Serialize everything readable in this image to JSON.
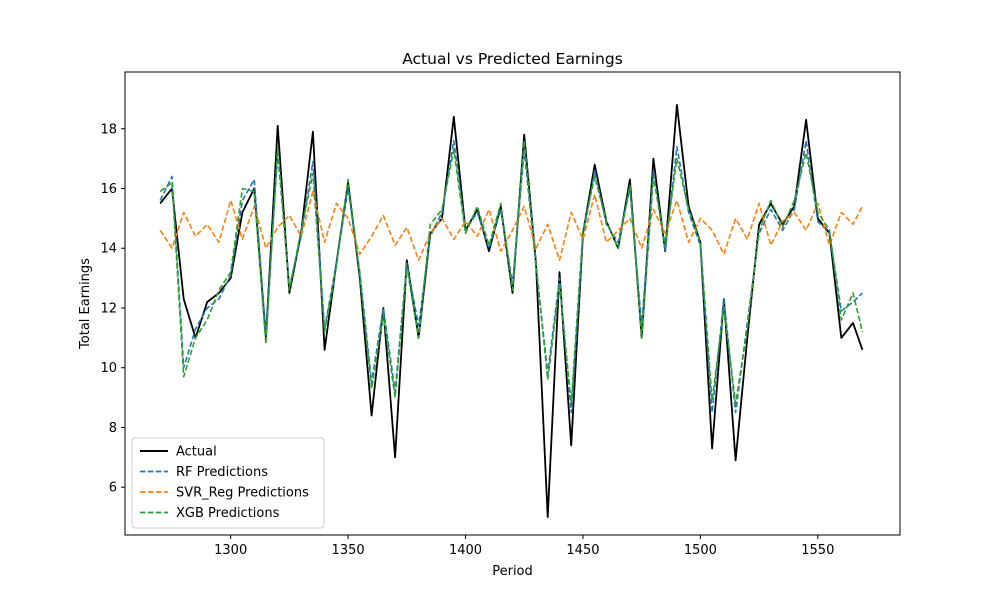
{
  "chart_data": {
    "type": "line",
    "title": "Actual vs Predicted Earnings",
    "xlabel": "Period",
    "ylabel": "Total Earnings",
    "xlim": [
      1255,
      1585
    ],
    "ylim": [
      4.4,
      19.9
    ],
    "xticks": [
      1300,
      1350,
      1400,
      1450,
      1500,
      1550
    ],
    "yticks": [
      6,
      8,
      10,
      12,
      14,
      16,
      18
    ],
    "grid": false,
    "legend_position": "lower-left",
    "x": [
      1270,
      1275,
      1280,
      1285,
      1290,
      1295,
      1300,
      1305,
      1310,
      1315,
      1320,
      1325,
      1330,
      1335,
      1340,
      1345,
      1350,
      1355,
      1360,
      1365,
      1370,
      1375,
      1380,
      1385,
      1390,
      1395,
      1400,
      1405,
      1410,
      1415,
      1420,
      1425,
      1430,
      1435,
      1440,
      1445,
      1450,
      1455,
      1460,
      1465,
      1470,
      1475,
      1480,
      1485,
      1490,
      1495,
      1500,
      1505,
      1510,
      1515,
      1520,
      1525,
      1530,
      1535,
      1540,
      1545,
      1550,
      1555,
      1560,
      1565,
      1569
    ],
    "series": [
      {
        "name": "Actual",
        "color": "#000000",
        "dash": "solid",
        "values": [
          15.5,
          16.0,
          12.3,
          11.0,
          12.2,
          12.5,
          13.0,
          15.2,
          16.0,
          11.0,
          18.1,
          12.5,
          14.5,
          17.9,
          10.6,
          13.5,
          16.2,
          13.0,
          8.4,
          12.0,
          7.0,
          13.6,
          11.0,
          14.5,
          15.0,
          18.4,
          14.6,
          15.3,
          13.9,
          15.4,
          12.5,
          17.8,
          13.5,
          5.0,
          13.2,
          7.4,
          14.5,
          16.8,
          14.9,
          14.0,
          16.3,
          11.0,
          17.0,
          13.9,
          18.8,
          15.4,
          14.2,
          7.3,
          12.3,
          6.9,
          11.0,
          14.8,
          15.5,
          14.8,
          15.4,
          18.3,
          15.0,
          14.5,
          11.0,
          11.5,
          10.6
        ]
      },
      {
        "name": "RF Predictions",
        "color": "#1f77b4",
        "dash": "dashed",
        "values": [
          15.6,
          16.4,
          10.0,
          11.3,
          12.0,
          12.3,
          13.1,
          15.6,
          16.3,
          11.1,
          17.2,
          12.7,
          14.4,
          16.9,
          11.3,
          13.5,
          16.0,
          13.2,
          9.5,
          12.0,
          9.2,
          13.5,
          11.4,
          14.4,
          15.2,
          17.6,
          14.6,
          15.2,
          14.0,
          15.3,
          12.8,
          17.3,
          13.4,
          9.8,
          13.0,
          8.5,
          14.4,
          16.6,
          14.8,
          14.2,
          16.0,
          11.4,
          16.6,
          13.9,
          17.4,
          15.2,
          14.1,
          8.5,
          12.3,
          8.5,
          11.5,
          14.5,
          15.3,
          14.6,
          15.3,
          17.6,
          14.9,
          14.5,
          11.9,
          12.2,
          12.5
        ]
      },
      {
        "name": "SVR_Reg Predictions",
        "color": "#ff7f0e",
        "dash": "dashed",
        "values": [
          14.6,
          14.0,
          15.2,
          14.4,
          14.8,
          14.2,
          15.6,
          14.3,
          15.4,
          14.0,
          14.7,
          15.1,
          14.4,
          15.9,
          14.2,
          15.5,
          15.0,
          13.8,
          14.4,
          15.1,
          14.1,
          14.7,
          13.6,
          14.5,
          15.0,
          14.3,
          14.9,
          14.4,
          15.3,
          13.9,
          14.6,
          15.4,
          14.0,
          14.8,
          13.6,
          15.2,
          14.3,
          15.8,
          14.2,
          14.6,
          15.0,
          14.0,
          15.3,
          14.5,
          15.6,
          14.2,
          15.0,
          14.6,
          13.8,
          15.0,
          14.3,
          15.5,
          14.1,
          14.9,
          15.2,
          14.6,
          15.5,
          14.1,
          15.2,
          14.8,
          15.4
        ]
      },
      {
        "name": "XGB Predictions",
        "color": "#2ca02c",
        "dash": "dashed",
        "values": [
          15.9,
          16.2,
          9.7,
          11.0,
          11.6,
          12.6,
          13.2,
          16.0,
          15.9,
          10.8,
          17.4,
          12.6,
          14.6,
          16.5,
          11.2,
          13.4,
          16.3,
          13.1,
          9.3,
          11.8,
          9.0,
          13.4,
          11.0,
          14.8,
          15.3,
          17.3,
          14.5,
          15.4,
          14.1,
          15.5,
          12.6,
          17.6,
          13.5,
          9.6,
          12.8,
          8.8,
          14.6,
          16.4,
          14.9,
          14.0,
          16.1,
          11.0,
          16.4,
          14.1,
          17.0,
          15.3,
          14.2,
          8.9,
          12.0,
          8.8,
          11.3,
          14.6,
          15.6,
          14.7,
          15.6,
          17.2,
          15.2,
          14.6,
          11.6,
          12.5,
          11.2
        ]
      }
    ]
  }
}
